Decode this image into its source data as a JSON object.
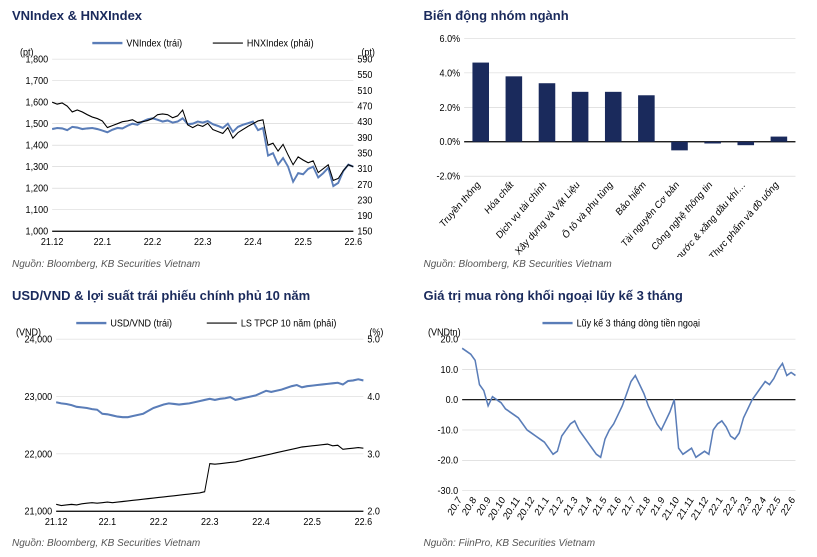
{
  "colors": {
    "primary": "#5a7db8",
    "dark": "#1a2a5c",
    "black": "#000000",
    "grid": "#d0d0d0",
    "bg": "#ffffff"
  },
  "panels": {
    "p1": {
      "title": "VNIndex & HNXIndex",
      "source": "Nguồn: Bloomberg, KB Securities Vietnam",
      "y1_label": "(pt)",
      "y2_label": "(pt)",
      "legend1": "VNIndex (trái)",
      "legend2": "HNXIndex (phải)",
      "x_ticks": [
        "21.12",
        "22.1",
        "22.2",
        "22.3",
        "22.4",
        "22.5",
        "22.6"
      ],
      "y1_min": 1000,
      "y1_max": 1800,
      "y1_step": 100,
      "y2_ticks": [
        150,
        190,
        230,
        270,
        310,
        350,
        390,
        430,
        470,
        510,
        550,
        590
      ],
      "series1_color": "#5a7db8",
      "series2_color": "#000000",
      "series1": [
        1475,
        1480,
        1478,
        1470,
        1485,
        1482,
        1475,
        1478,
        1480,
        1475,
        1468,
        1460,
        1472,
        1480,
        1478,
        1490,
        1500,
        1495,
        1510,
        1520,
        1525,
        1518,
        1510,
        1515,
        1505,
        1510,
        1525,
        1498,
        1500,
        1510,
        1505,
        1512,
        1498,
        1490,
        1480,
        1500,
        1462,
        1485,
        1495,
        1502,
        1510,
        1470,
        1480,
        1352,
        1363,
        1310,
        1340,
        1300,
        1230,
        1270,
        1265,
        1290,
        1300,
        1250,
        1270,
        1295,
        1210,
        1225,
        1280,
        1310,
        1300
      ],
      "series2": [
        480,
        475,
        478,
        470,
        455,
        460,
        455,
        448,
        442,
        438,
        432,
        415,
        420,
        425,
        430,
        432,
        435,
        428,
        430,
        433,
        438,
        448,
        450,
        448,
        440,
        445,
        460,
        422,
        415,
        422,
        418,
        426,
        410,
        405,
        400,
        415,
        388,
        402,
        410,
        418,
        425,
        432,
        435,
        370,
        375,
        355,
        372,
        345,
        320,
        340,
        332,
        325,
        330,
        300,
        310,
        320,
        280,
        285,
        305,
        320,
        315
      ]
    },
    "p2": {
      "title": "Biến động nhóm ngành",
      "source": "Nguồn: Bloomberg, KB Securities Vietnam",
      "y_min": -2,
      "y_max": 6,
      "y_step": 2,
      "y_format": "pct",
      "bar_color": "#1a2a5c",
      "categories": [
        "Truyền thông",
        "Hóa chất",
        "Dịch vụ tài chính",
        "Xây dựng và Vật Liệu",
        "Ô tô và phụ tùng",
        "Bảo hiểm",
        "Tài nguyên Cơ bản",
        "Công nghệ thông tin",
        "Điện, nước & xăng dầu khí…",
        "Thực phẩm và đồ uống"
      ],
      "values": [
        4.6,
        3.8,
        3.4,
        2.9,
        2.9,
        2.7,
        -0.5,
        -0.1,
        -0.2,
        0.3
      ]
    },
    "p3": {
      "title": "USD/VND & lợi suất trái phiếu chính phủ 10 năm",
      "source": "Nguồn: Bloomberg, KB Securities Vietnam",
      "y1_label": "(VND)",
      "y2_label": "(%)",
      "legend1": "USD/VND (trái)",
      "legend2": "LS TPCP 10 năm (phải)",
      "x_ticks": [
        "21.12",
        "22.1",
        "22.2",
        "22.3",
        "22.4",
        "22.5",
        "22.6"
      ],
      "y1_min": 21000,
      "y1_max": 24000,
      "y1_step": 1000,
      "y2_min": 2.0,
      "y2_max": 5.0,
      "y2_step": 1.0,
      "series1_color": "#5a7db8",
      "series2_color": "#000000",
      "series1": [
        22900,
        22880,
        22870,
        22850,
        22820,
        22810,
        22800,
        22780,
        22770,
        22700,
        22690,
        22670,
        22650,
        22640,
        22640,
        22660,
        22680,
        22700,
        22750,
        22800,
        22830,
        22860,
        22880,
        22870,
        22860,
        22870,
        22880,
        22900,
        22920,
        22940,
        22960,
        22940,
        22960,
        22970,
        22990,
        22940,
        22960,
        22980,
        23000,
        23020,
        23060,
        23100,
        23080,
        23100,
        23120,
        23150,
        23180,
        23200,
        23160,
        23180,
        23190,
        23200,
        23210,
        23220,
        23230,
        23240,
        23210,
        23270,
        23280,
        23300,
        23280
      ],
      "series2": [
        2.12,
        2.1,
        2.11,
        2.12,
        2.11,
        2.13,
        2.14,
        2.15,
        2.14,
        2.15,
        2.16,
        2.15,
        2.16,
        2.17,
        2.18,
        2.19,
        2.2,
        2.21,
        2.22,
        2.23,
        2.24,
        2.25,
        2.26,
        2.27,
        2.28,
        2.29,
        2.3,
        2.31,
        2.32,
        2.34,
        2.83,
        2.82,
        2.83,
        2.84,
        2.85,
        2.86,
        2.88,
        2.9,
        2.92,
        2.94,
        2.96,
        2.98,
        3.0,
        3.02,
        3.04,
        3.06,
        3.08,
        3.1,
        3.12,
        3.13,
        3.14,
        3.15,
        3.16,
        3.17,
        3.14,
        3.15,
        3.08,
        3.09,
        3.1,
        3.11,
        3.1
      ]
    },
    "p4": {
      "title": "Giá trị mua ròng khối ngoại lũy kế 3 tháng",
      "source": "Nguồn: FiinPro, KB Securities Vietnam",
      "y_label": "(VNDtn)",
      "legend": "Lũy kế 3 tháng dòng tiền ngoại",
      "x_ticks": [
        "20.7",
        "20.8",
        "20.9",
        "20.10",
        "20.11",
        "20.12",
        "21.1",
        "21.2",
        "21.3",
        "21.4",
        "21.5",
        "21.6",
        "21.7",
        "21.8",
        "21.9",
        "21.10",
        "21.11",
        "21.12",
        "22.1",
        "22.2",
        "22.3",
        "22.4",
        "22.5",
        "22.6"
      ],
      "y_min": -30,
      "y_max": 20,
      "y_step": 10,
      "series_color": "#5a7db8",
      "series": [
        17,
        16,
        15,
        13,
        5,
        3,
        -2,
        1,
        0,
        -1,
        -3,
        -4,
        -5,
        -6,
        -8,
        -10,
        -11,
        -12,
        -13,
        -14,
        -16,
        -18,
        -17,
        -12,
        -10,
        -8,
        -7,
        -10,
        -12,
        -14,
        -16,
        -18,
        -19,
        -13,
        -10,
        -8,
        -5,
        -2,
        2,
        6,
        8,
        5,
        2,
        -2,
        -5,
        -8,
        -10,
        -7,
        -4,
        0,
        -16,
        -18,
        -17,
        -16,
        -19,
        -18,
        -17,
        -18,
        -10,
        -8,
        -7,
        -9,
        -12,
        -13,
        -11,
        -6,
        -3,
        0,
        2,
        4,
        6,
        5,
        7,
        10,
        12,
        8,
        9,
        8
      ]
    }
  }
}
